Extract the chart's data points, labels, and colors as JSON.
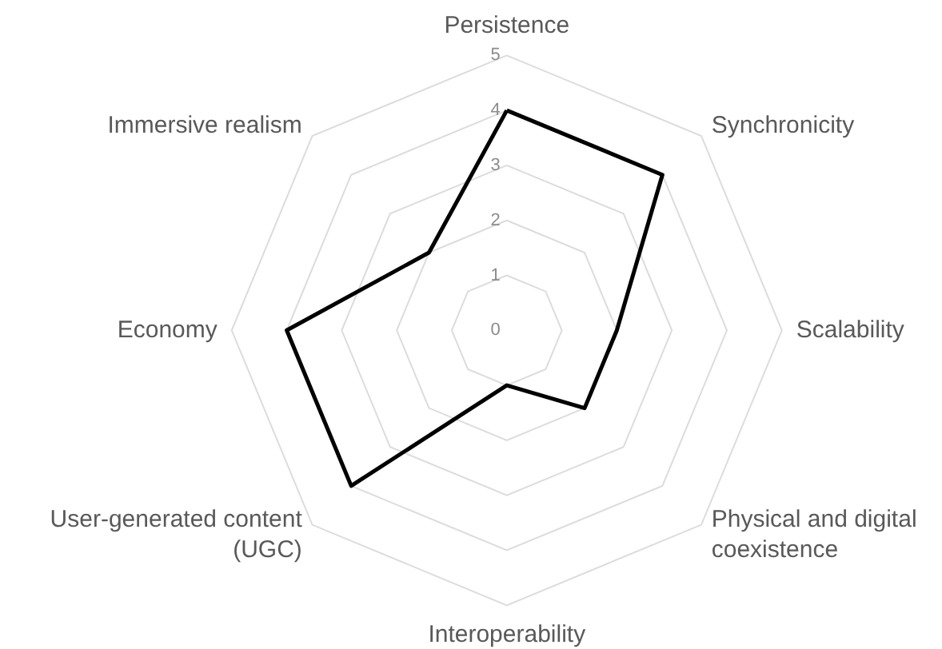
{
  "chart_data": {
    "type": "radar",
    "categories": [
      "Persistence",
      "Synchronicity",
      "Scalability",
      "Physical and digital coexistence",
      "Interoperability",
      "User-generated content (UGC)",
      "Economy",
      "Immersive realism"
    ],
    "series": [
      {
        "color": "#000000",
        "values": [
          4,
          4,
          2,
          2,
          1,
          4,
          4,
          2
        ]
      }
    ],
    "ylim": [
      0,
      5
    ],
    "yticks": [
      0,
      1,
      2,
      3,
      4,
      5
    ],
    "grid": true
  }
}
